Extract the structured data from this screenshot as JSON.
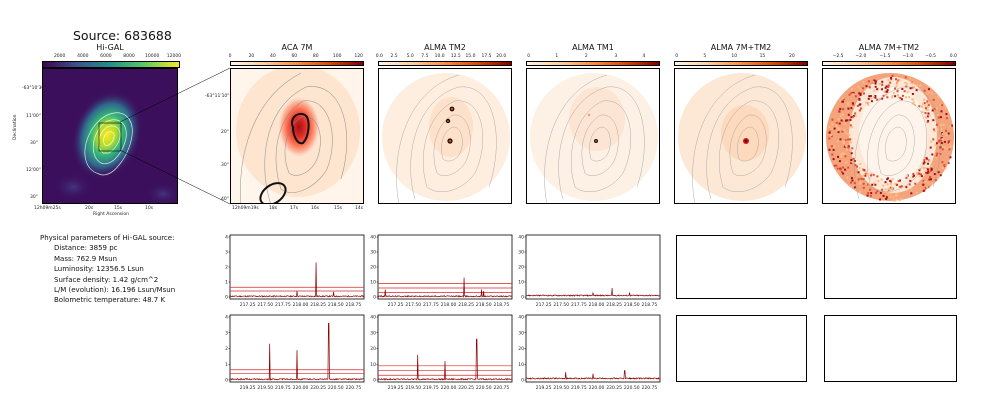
{
  "source_title": "Source: 683688",
  "panels": {
    "higal": {
      "title": "Hi-GAL",
      "cbar_ticks": [
        "2000",
        "4000",
        "6000",
        "8000",
        "10000",
        "12000"
      ],
      "ylabel": "Declination",
      "xlabel": "Right Ascension",
      "yticks": [
        "-63°10'30\"",
        "11'00\"",
        "30\"",
        "12'00\"",
        "30\""
      ],
      "xticks": [
        "12h09m25s",
        "20s",
        "15s",
        "10s"
      ]
    },
    "aca7m": {
      "title": "ACA 7M",
      "cbar_ticks": [
        "0",
        "20",
        "40",
        "60",
        "80",
        "100",
        "120"
      ]
    },
    "tm2": {
      "title": "ALMA TM2",
      "cbar_ticks": [
        "0.0",
        "2.5",
        "5.0",
        "7.5",
        "10.0",
        "12.5",
        "15.0",
        "17.5",
        "20.0"
      ]
    },
    "tm1": {
      "title": "ALMA TM1",
      "cbar_ticks": [
        "0",
        "1",
        "2",
        "3",
        "4"
      ]
    },
    "comb1": {
      "title": "ALMA 7M+TM2",
      "cbar_ticks": [
        "0",
        "5",
        "10",
        "15",
        "20"
      ]
    },
    "comb2": {
      "title": "ALMA 7M+TM2",
      "cbar_ticks": [
        "−2.5",
        "−2.0",
        "−1.5",
        "−1.0",
        "−0.5",
        "0.0"
      ]
    }
  },
  "map_axes": {
    "yticks": [
      "-63°11'10\"",
      "20\"",
      "30\"",
      "40\""
    ],
    "xticks": [
      "12h09m19s",
      "18s",
      "17s",
      "16s",
      "15s",
      "14s"
    ]
  },
  "params": {
    "heading": "Physical parameters of Hi-GAL source:",
    "lines": [
      "Distance: 3859 pc",
      "Mass: 762.9 Msun",
      "Luminosity: 12356.5 Lsun",
      "Surface density: 1.42 g/cm^2",
      "L/M (evolution): 16.196 Lsun/Msun",
      "Bolometric temperature: 48.7 K"
    ]
  },
  "chart_data": [
    {
      "type": "line",
      "panel": "ACA 7M spectrum (top)",
      "x": [
        217.0,
        218.9
      ],
      "xticks": [
        "217.25",
        "217.50",
        "217.75",
        "218.00",
        "218.25",
        "218.50",
        "218.75"
      ],
      "ylim": [
        0,
        4
      ],
      "yticks": [
        "0",
        "1",
        "2",
        "3",
        "4"
      ],
      "series": [
        {
          "values": {
            "baseline": 0.05,
            "peaks": [
              {
                "x": 218.22,
                "y": 2.3
              },
              {
                "x": 217.95,
                "y": 0.4
              },
              {
                "x": 218.47,
                "y": 0.35
              }
            ]
          }
        }
      ],
      "threshold_lines": [
        0.4,
        0.65
      ]
    },
    {
      "type": "line",
      "panel": "ALMA TM2 spectrum (top)",
      "ylim": [
        0,
        40
      ],
      "yticks": [
        "0",
        "10",
        "20",
        "30",
        "40"
      ],
      "xticks": [
        "217.25",
        "217.50",
        "217.75",
        "218.00",
        "218.25",
        "218.50",
        "218.75"
      ],
      "series": [
        {
          "values": {
            "baseline": 0.5,
            "peaks": [
              {
                "x": 218.22,
                "y": 13
              },
              {
                "x": 217.1,
                "y": 5
              },
              {
                "x": 218.47,
                "y": 5
              },
              {
                "x": 218.5,
                "y": 4
              }
            ]
          }
        }
      ],
      "threshold_lines": [
        3,
        6,
        9
      ]
    },
    {
      "type": "line",
      "panel": "ALMA TM1 spectrum (top)",
      "ylim": [
        0,
        40
      ],
      "yticks": [
        "0",
        "10",
        "20",
        "30",
        "40"
      ],
      "xticks": [
        "217.25",
        "217.50",
        "217.75",
        "218.00",
        "218.25",
        "218.50",
        "218.75"
      ],
      "series": [
        {
          "values": {
            "baseline": 1,
            "peaks": [
              {
                "x": 218.22,
                "y": 6
              },
              {
                "x": 217.95,
                "y": 3
              },
              {
                "x": 218.47,
                "y": 3
              }
            ]
          }
        }
      ]
    },
    {
      "type": "line",
      "panel": "ACA 7M spectrum (bottom)",
      "ylim": [
        0,
        4
      ],
      "yticks": [
        "0",
        "1",
        "2",
        "3",
        "4"
      ],
      "xticks": [
        "219.25",
        "219.50",
        "219.75",
        "220.00",
        "220.25",
        "220.50",
        "220.75"
      ],
      "series": [
        {
          "values": {
            "baseline": 0.05,
            "peaks": [
              {
                "x": 219.56,
                "y": 2.3
              },
              {
                "x": 219.95,
                "y": 1.9
              },
              {
                "x": 220.4,
                "y": 3.6
              }
            ]
          }
        }
      ],
      "threshold_lines": [
        0.4,
        0.65
      ]
    },
    {
      "type": "line",
      "panel": "ALMA TM2 spectrum (bottom)",
      "ylim": [
        0,
        40
      ],
      "yticks": [
        "0",
        "10",
        "20",
        "30",
        "40"
      ],
      "xticks": [
        "219.25",
        "219.50",
        "219.75",
        "220.00",
        "220.25",
        "220.50",
        "220.75"
      ],
      "series": [
        {
          "values": {
            "baseline": 0.5,
            "peaks": [
              {
                "x": 219.56,
                "y": 16
              },
              {
                "x": 219.95,
                "y": 12
              },
              {
                "x": 220.4,
                "y": 26
              }
            ]
          }
        }
      ],
      "threshold_lines": [
        3,
        6,
        9
      ]
    },
    {
      "type": "line",
      "panel": "ALMA TM1 spectrum (bottom)",
      "ylim": [
        0,
        40
      ],
      "yticks": [
        "0",
        "10",
        "20",
        "30",
        "40"
      ],
      "xticks": [
        "219.25",
        "219.50",
        "219.75",
        "220.00",
        "220.25",
        "220.50",
        "220.75"
      ],
      "series": [
        {
          "values": {
            "baseline": 1,
            "peaks": [
              {
                "x": 219.56,
                "y": 5
              },
              {
                "x": 219.95,
                "y": 4
              },
              {
                "x": 220.4,
                "y": 6
              }
            ]
          }
        }
      ]
    }
  ]
}
